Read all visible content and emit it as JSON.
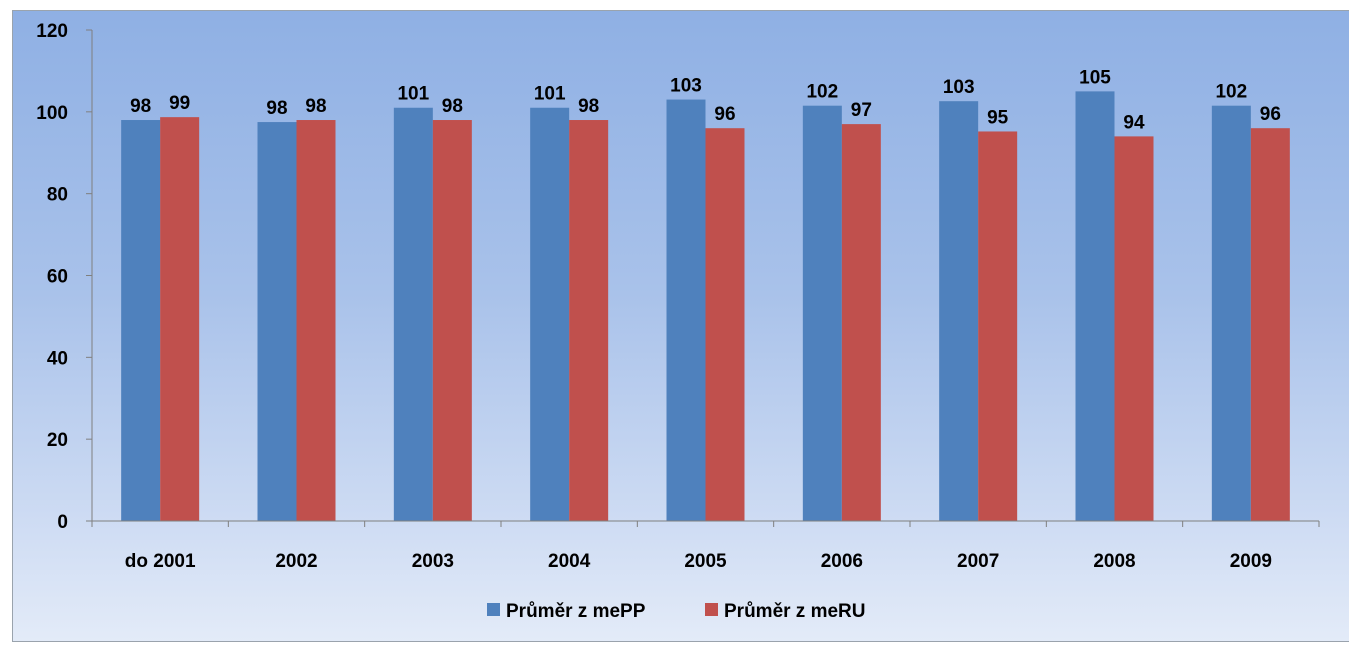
{
  "chart_data": {
    "type": "bar",
    "title": "",
    "xlabel": "",
    "ylabel": "",
    "ylim": [
      0,
      120
    ],
    "y_ticks": [
      0,
      20,
      40,
      60,
      80,
      100,
      120
    ],
    "grid": false,
    "legend_position": "bottom",
    "categories": [
      "do 2001",
      "2002",
      "2003",
      "2004",
      "2005",
      "2006",
      "2007",
      "2008",
      "2009"
    ],
    "series": [
      {
        "name": "Průměr z mePP",
        "color": "#4f81bd",
        "values": [
          98,
          97.5,
          101,
          101,
          103,
          101.5,
          102.6,
          105,
          101.5
        ],
        "labels": [
          "98",
          "98",
          "101",
          "101",
          "103",
          "102",
          "103",
          "105",
          "102"
        ]
      },
      {
        "name": "Průměr z meRU",
        "color": "#c0504d",
        "values": [
          98.7,
          98,
          98,
          98,
          96,
          97,
          95.2,
          94,
          96
        ],
        "labels": [
          "99",
          "98",
          "98",
          "98",
          "96",
          "97",
          "95",
          "94",
          "96"
        ]
      }
    ]
  }
}
